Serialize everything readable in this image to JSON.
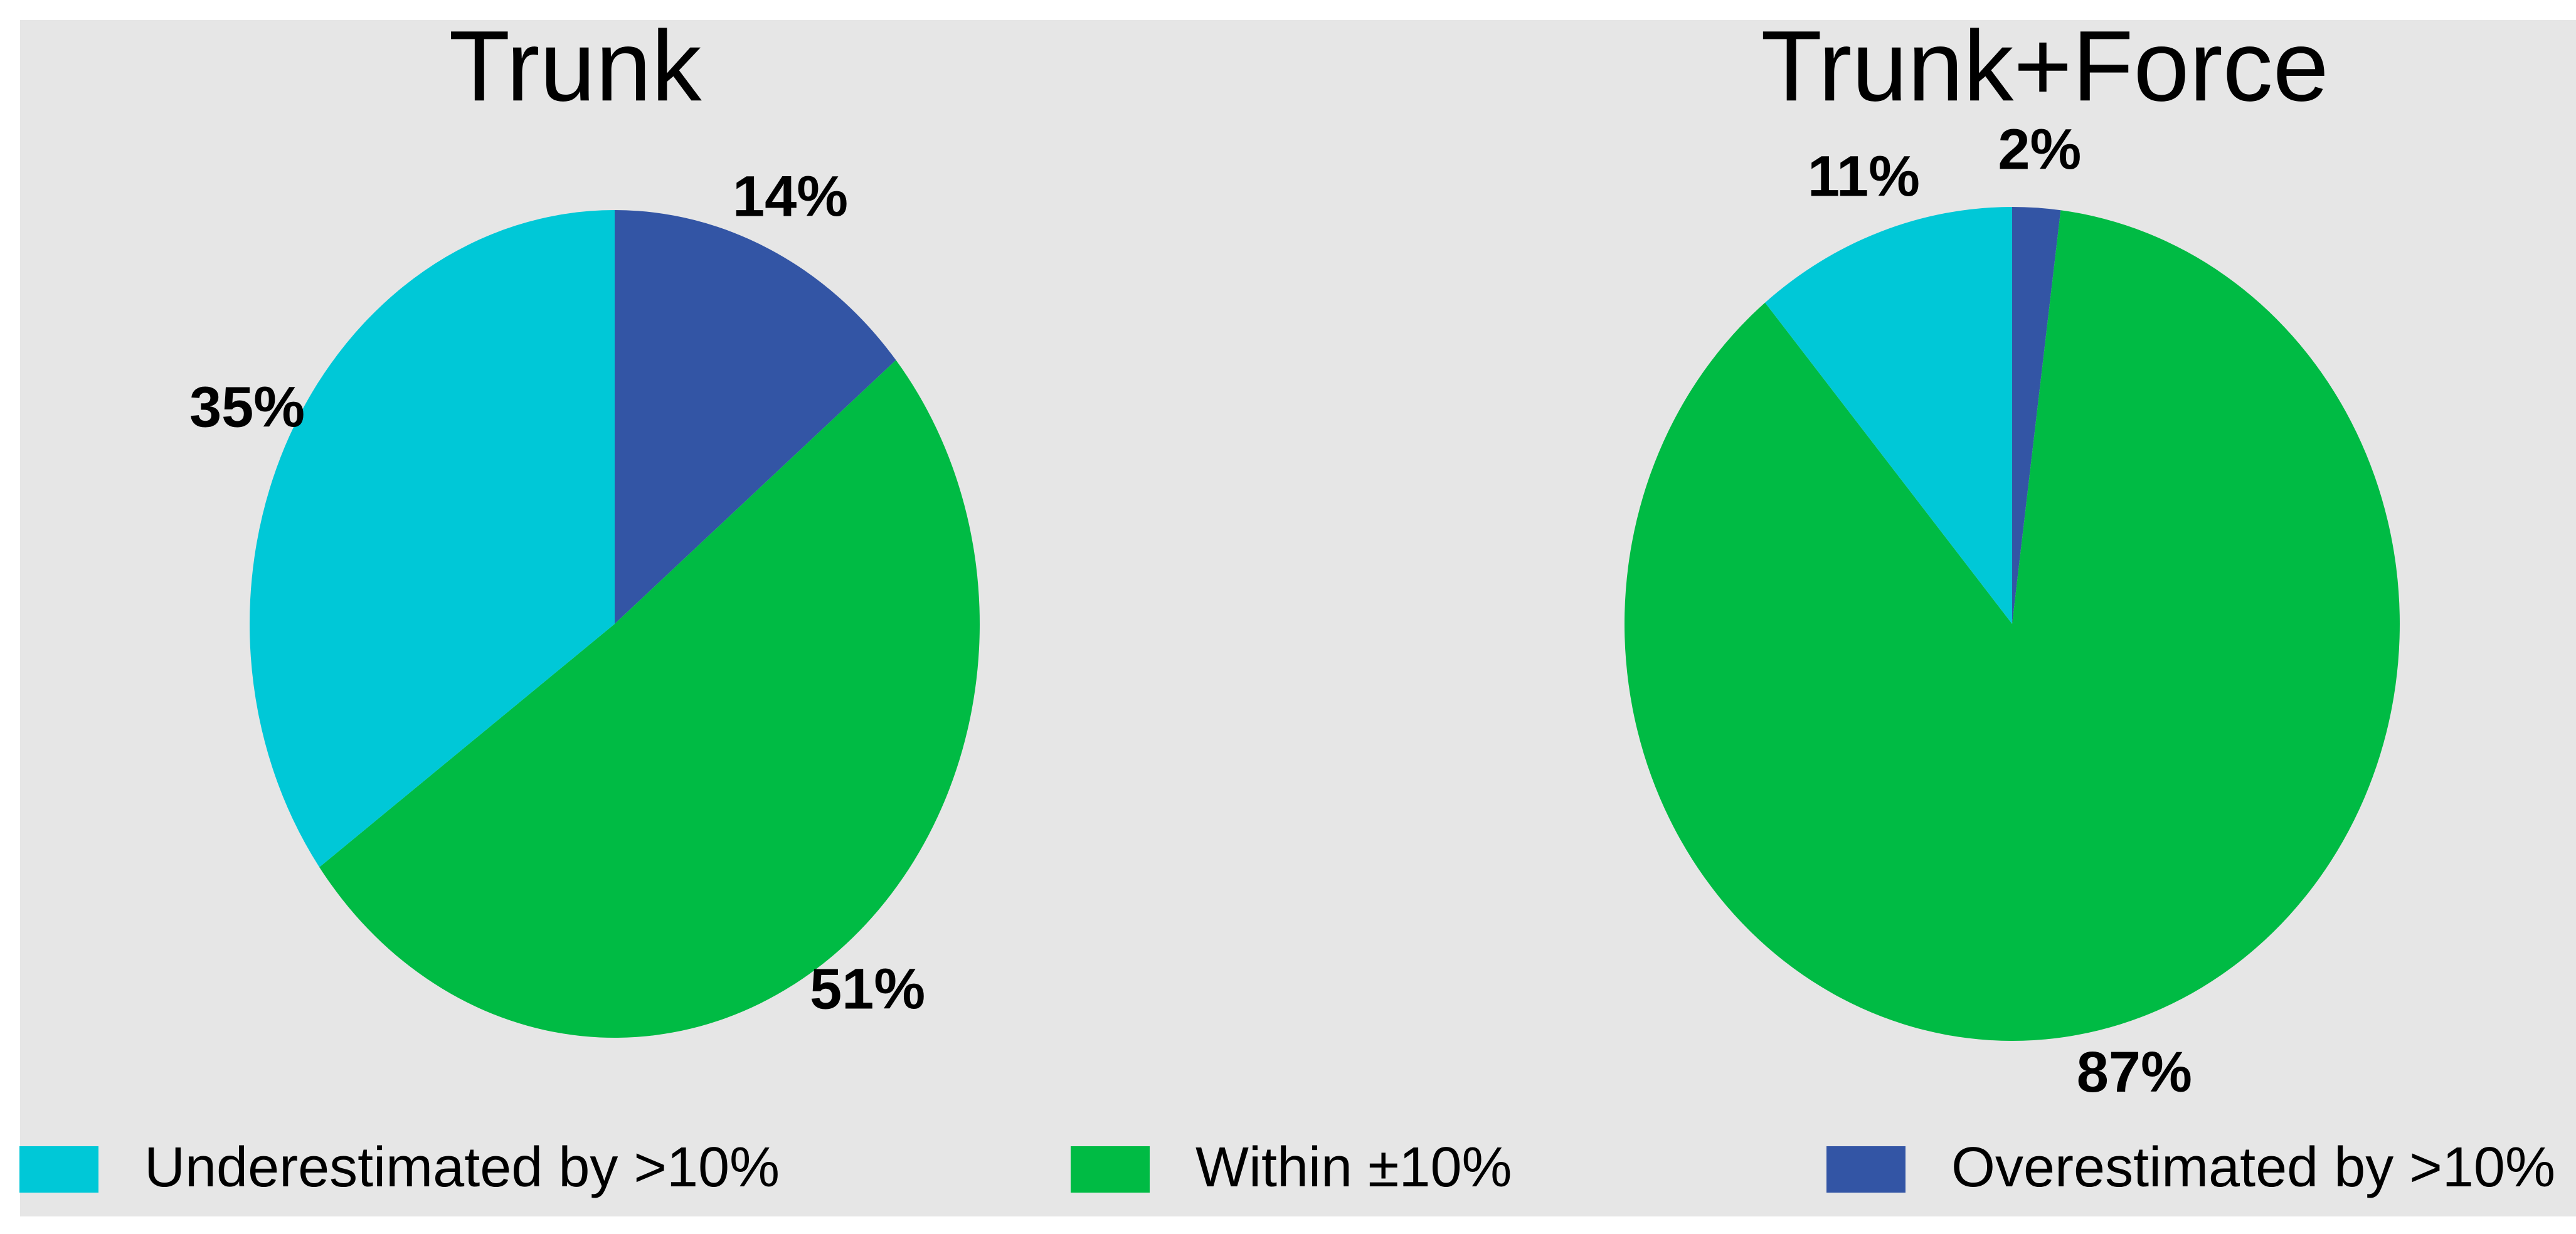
{
  "chart_data": [
    {
      "type": "pie",
      "title": "Trunk",
      "categories": [
        "Underestimated by >10%",
        "Within ±10%",
        "Overestimated by >10%"
      ],
      "colors": [
        "#00c8d7",
        "#00bb44",
        "#3355a5"
      ],
      "values": [
        35,
        51,
        14
      ],
      "value_labels": [
        "35%",
        "51%",
        "14%"
      ]
    },
    {
      "type": "pie",
      "title": "Trunk+Force",
      "categories": [
        "Underestimated by >10%",
        "Within ±10%",
        "Overestimated by >10%"
      ],
      "colors": [
        "#00c8d7",
        "#00bb44",
        "#3355a5"
      ],
      "values": [
        11,
        87,
        2
      ],
      "value_labels": [
        "11%",
        "87%",
        "2%"
      ]
    }
  ]
}
